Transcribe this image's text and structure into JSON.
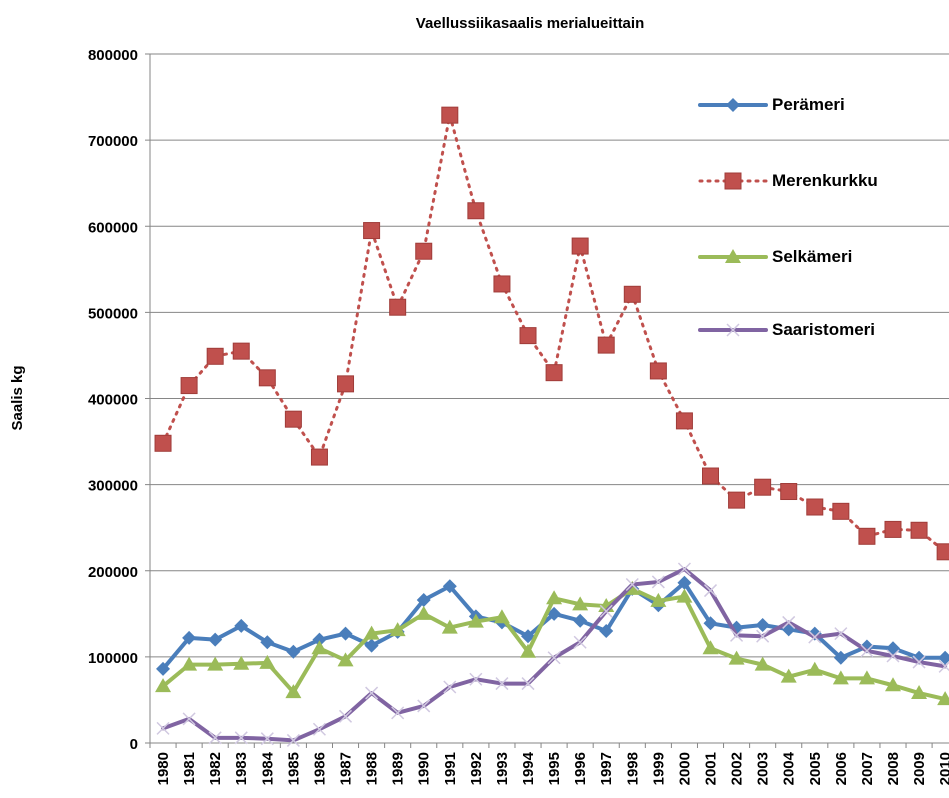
{
  "chart_data": {
    "type": "line",
    "title": "Vaellussiikasaalis merialueittain",
    "y_label": "Saalis kg",
    "categories": [
      "1980",
      "1981",
      "1982",
      "1983",
      "1984",
      "1985",
      "1986",
      "1987",
      "1988",
      "1989",
      "1990",
      "1991",
      "1992",
      "1993",
      "1994",
      "1995",
      "1996",
      "1997",
      "1998",
      "1999",
      "2000",
      "2001",
      "2002",
      "2003",
      "2004",
      "2005",
      "2006",
      "2007",
      "2008",
      "2009",
      "2010"
    ],
    "series": [
      {
        "name": "Perämeri",
        "color": "#4a7ebb",
        "marker": "diamond",
        "dash": "solid",
        "values": [
          86000,
          122000,
          120000,
          136000,
          117000,
          106000,
          120000,
          127000,
          113000,
          129000,
          166000,
          182000,
          147000,
          140000,
          124000,
          150000,
          142000,
          130000,
          179000,
          160000,
          186000,
          139000,
          134000,
          137000,
          132000,
          127000,
          99000,
          112000,
          110000,
          99000,
          99000
        ]
      },
      {
        "name": "Merenkurkku",
        "color": "#c0504d",
        "marker": "square",
        "dash": "dotted",
        "values": [
          348000,
          415000,
          449000,
          455000,
          424000,
          376000,
          332000,
          417000,
          595000,
          506000,
          571000,
          729000,
          618000,
          533000,
          473000,
          430000,
          577000,
          462000,
          521000,
          432000,
          374000,
          310000,
          282000,
          297000,
          292000,
          274000,
          269000,
          240000,
          248000,
          247000,
          222000
        ]
      },
      {
        "name": "Selkämeri",
        "color": "#9bbb59",
        "marker": "triangle",
        "dash": "solid",
        "values": [
          66000,
          91000,
          91000,
          92000,
          93000,
          59000,
          110000,
          96000,
          127000,
          131000,
          150000,
          134000,
          141000,
          146000,
          106000,
          168000,
          161000,
          159000,
          179000,
          165000,
          170000,
          110000,
          98000,
          91000,
          77000,
          85000,
          75000,
          75000,
          67000,
          58000,
          51000
        ]
      },
      {
        "name": "Saaristomeri",
        "color": "#8064a2",
        "marker": "x",
        "dash": "solid",
        "values": [
          17000,
          28000,
          6000,
          6000,
          5000,
          3000,
          16000,
          31000,
          58000,
          35000,
          43000,
          65000,
          74000,
          69000,
          69000,
          99000,
          117000,
          153000,
          184000,
          187000,
          202000,
          177000,
          125000,
          124000,
          140000,
          123000,
          127000,
          107000,
          101000,
          94000,
          89000
        ]
      }
    ],
    "ylim": [
      0,
      800000
    ],
    "yticks": [
      0,
      100000,
      200000,
      300000,
      400000,
      500000,
      600000,
      700000,
      800000
    ],
    "grid": true,
    "legend": "right"
  }
}
